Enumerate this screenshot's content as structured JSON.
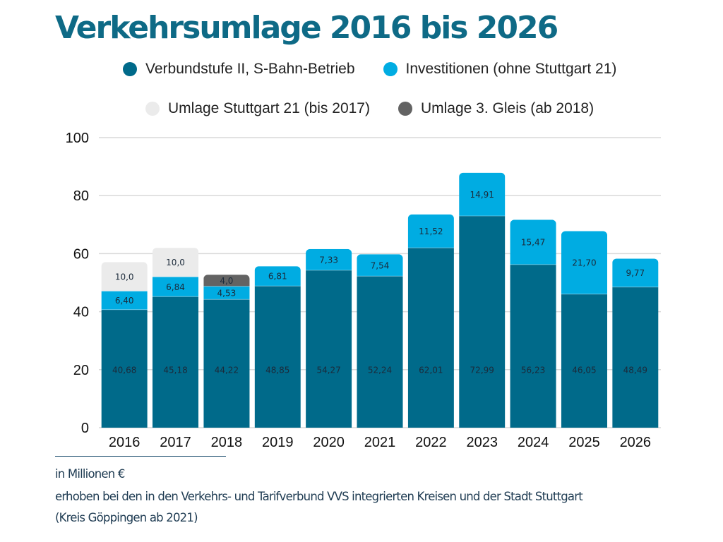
{
  "chart_data": {
    "type": "bar",
    "stacked": true,
    "title": "Verkehrsumlage 2016 bis 2026",
    "xlabel": "",
    "ylabel": "",
    "ylim": [
      0,
      100
    ],
    "yticks": [
      "0",
      "20",
      "40",
      "60",
      "80",
      "100"
    ],
    "grid": true,
    "legend_position": "top",
    "categories": [
      "2016",
      "2017",
      "2018",
      "2019",
      "2020",
      "2021",
      "2022",
      "2023",
      "2024",
      "2025",
      "2026"
    ],
    "series": [
      {
        "name": "Verbundstufe II, S-Bahn-Betrieb",
        "color": "#006a8a",
        "values": [
          40.68,
          45.18,
          44.22,
          48.85,
          54.27,
          52.24,
          62.01,
          72.99,
          56.23,
          46.05,
          48.49
        ],
        "labels": [
          "40,68",
          "45,18",
          "44,22",
          "48,85",
          "54,27",
          "52,24",
          "62,01",
          "72,99",
          "56,23",
          "46,05",
          "48,49"
        ]
      },
      {
        "name": "Investitionen (ohne Stuttgart 21)",
        "color": "#00ace2",
        "values": [
          6.4,
          6.84,
          4.53,
          6.81,
          7.33,
          7.54,
          11.52,
          14.91,
          15.47,
          21.7,
          9.77
        ],
        "labels": [
          "6,40",
          "6,84",
          "4,53",
          "6,81",
          "7,33",
          "7,54",
          "11,52",
          "14,91",
          "15,47",
          "21,70",
          "9,77"
        ]
      },
      {
        "name": "Umlage Stuttgart 21 (bis 2017)",
        "color": "#ebebeb",
        "values": [
          10.0,
          10.0,
          null,
          null,
          null,
          null,
          null,
          null,
          null,
          null,
          null
        ],
        "labels": [
          "10,0",
          "10,0",
          null,
          null,
          null,
          null,
          null,
          null,
          null,
          null,
          null
        ]
      },
      {
        "name": "Umlage 3. Gleis (ab 2018)",
        "color": "#636363",
        "values": [
          null,
          null,
          4.0,
          null,
          null,
          null,
          null,
          null,
          null,
          null,
          null
        ],
        "labels": [
          null,
          null,
          "4,0",
          null,
          null,
          null,
          null,
          null,
          null,
          null,
          null
        ]
      }
    ]
  },
  "legend": {
    "row1": [
      {
        "label": "Verbundstufe II, S-Bahn-Betrieb",
        "color": "#006a8a"
      },
      {
        "label": "Investitionen (ohne Stuttgart 21)",
        "color": "#00ace2"
      }
    ],
    "row2": [
      {
        "label": "Umlage Stuttgart 21 (bis 2017)",
        "color": "#ebebeb"
      },
      {
        "label": "Umlage 3. Gleis (ab 2018)",
        "color": "#636363"
      }
    ]
  },
  "notes": {
    "unit": "in Millionen €",
    "line1": "erhoben bei den in den Verkehrs- und Tarifverbund VVS integrierten Kreisen und der Stadt Stuttgart",
    "line2": "(Kreis Göppingen ab 2021)"
  }
}
